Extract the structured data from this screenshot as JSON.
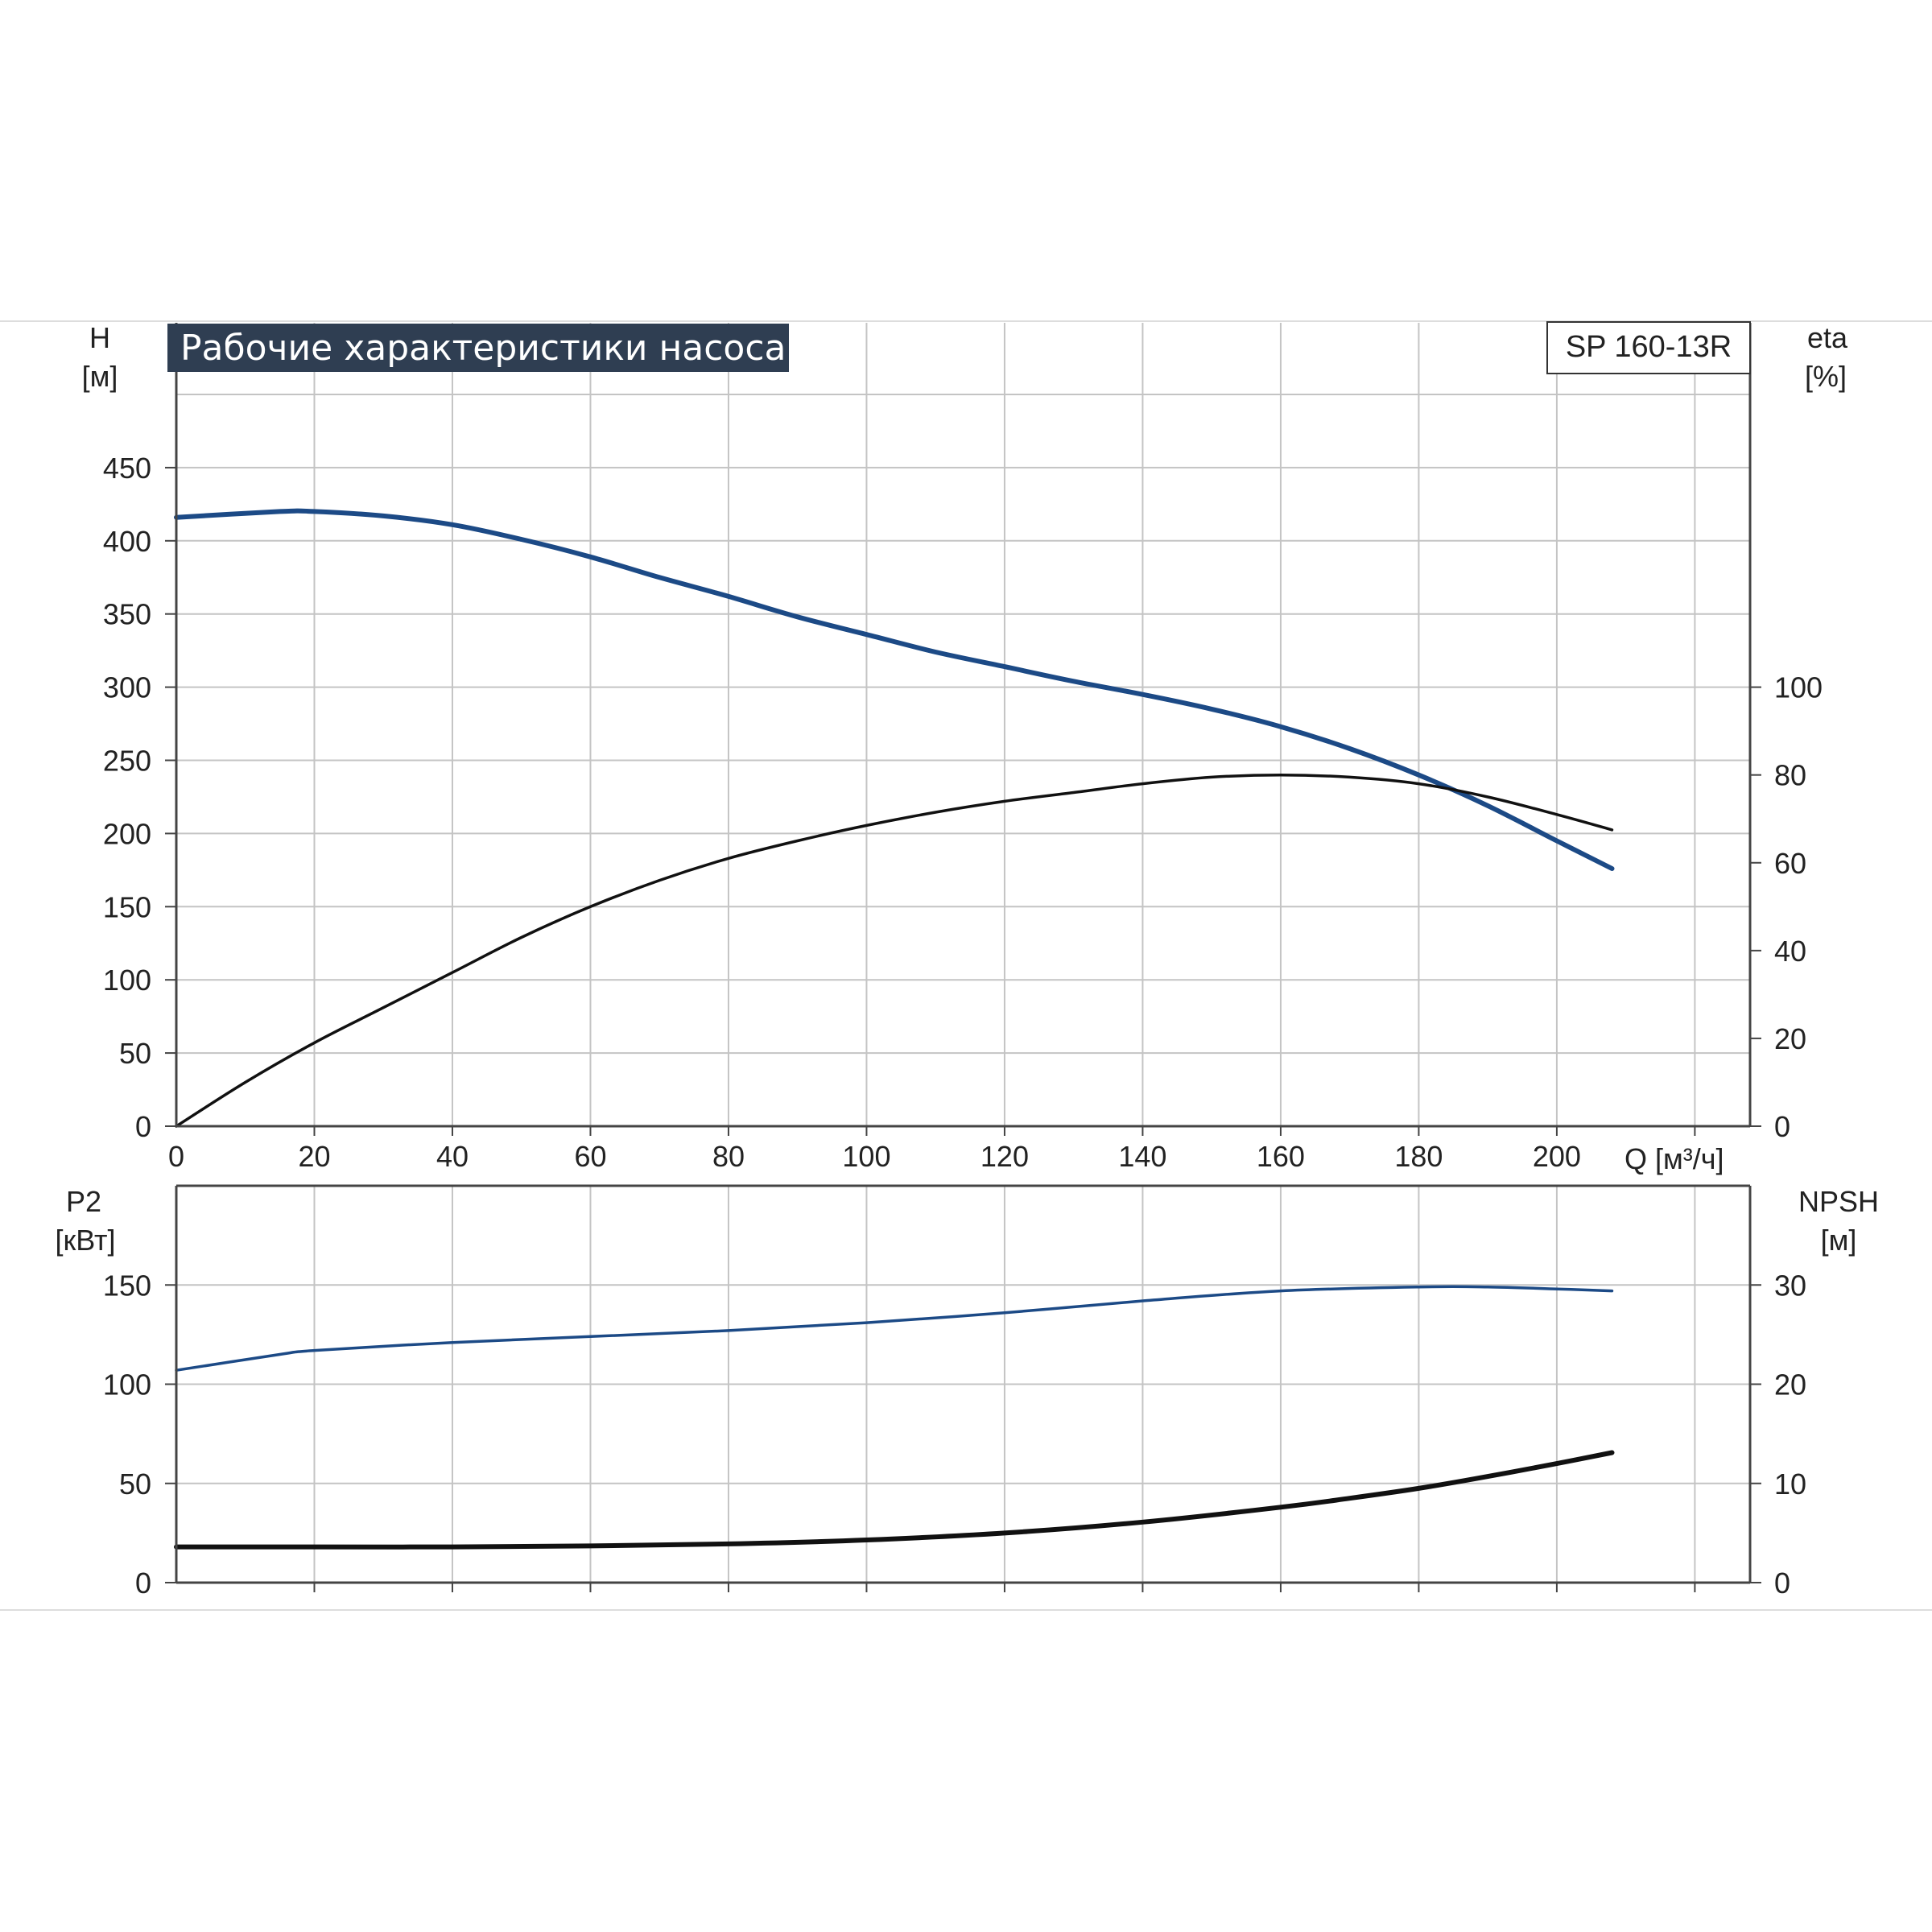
{
  "title": "Рабочие характеристики насоса",
  "model": "SP 160-13R",
  "colors": {
    "grid": "#c4c4c4",
    "axis": "#444444",
    "title_bg": "#2f3e52",
    "blue": "#1c4a86",
    "black": "#111111"
  },
  "chart_data": [
    {
      "type": "line",
      "name": "top",
      "x_axis": {
        "label": "Q [м³/ч]",
        "range": [
          0,
          228
        ],
        "ticks": [
          0,
          20,
          40,
          60,
          80,
          100,
          120,
          140,
          160,
          180,
          200
        ]
      },
      "left_axis": {
        "label_line1": "H",
        "label_line2": "[м]",
        "range": [
          0,
          500
        ],
        "ticks": [
          0,
          50,
          100,
          150,
          200,
          250,
          300,
          350,
          400,
          450
        ]
      },
      "right_axis": {
        "label_line1": "eta",
        "label_line2": "[%]",
        "range": [
          0,
          166.67
        ],
        "ticks": [
          0,
          20,
          40,
          60,
          80,
          100
        ]
      },
      "grid": true,
      "series": [
        {
          "axis": "left",
          "color": "blue",
          "x": [
            0,
            15,
            20,
            30,
            40,
            50,
            60,
            70,
            80,
            90,
            100,
            110,
            120,
            130,
            140,
            150,
            160,
            170,
            180,
            190,
            200,
            208
          ],
          "y": [
            416,
            420,
            420,
            417,
            411,
            401,
            389,
            375,
            362,
            348,
            336,
            324,
            314,
            304,
            295,
            285,
            273,
            258,
            240,
            219,
            195,
            176
          ]
        },
        {
          "axis": "right",
          "color": "black",
          "x": [
            0,
            10,
            20,
            30,
            40,
            50,
            60,
            70,
            80,
            90,
            100,
            110,
            120,
            130,
            140,
            150,
            160,
            170,
            180,
            190,
            200,
            208
          ],
          "y": [
            0,
            10,
            19,
            27,
            35,
            43,
            50,
            56,
            61,
            65,
            68.5,
            71.5,
            74,
            76,
            78,
            79.5,
            80,
            79.5,
            78,
            75,
            71,
            67.5
          ]
        }
      ]
    },
    {
      "type": "line",
      "name": "bottom",
      "x_axis": {
        "label": "",
        "range": [
          0,
          228
        ],
        "ticks": []
      },
      "left_axis": {
        "label_line1": "P2",
        "label_line2": "[кВт]",
        "range": [
          0,
          200
        ],
        "ticks": [
          0,
          50,
          100,
          150
        ]
      },
      "right_axis": {
        "label_line1": "NPSH",
        "label_line2": "[м]",
        "range": [
          0,
          40
        ],
        "ticks": [
          0,
          10,
          20,
          30
        ]
      },
      "grid": true,
      "series": [
        {
          "axis": "left",
          "color": "blue",
          "x": [
            0,
            15,
            20,
            40,
            60,
            80,
            100,
            120,
            140,
            160,
            180,
            190,
            200,
            208
          ],
          "y": [
            107,
            115,
            117,
            121,
            124,
            127,
            131,
            136,
            142,
            147,
            149,
            149,
            148,
            147
          ]
        },
        {
          "axis": "right",
          "color": "black",
          "x": [
            0,
            15,
            20,
            40,
            60,
            80,
            100,
            120,
            140,
            160,
            170,
            180,
            190,
            200,
            208
          ],
          "y": [
            3.6,
            3.6,
            3.6,
            3.6,
            3.7,
            3.9,
            4.3,
            5.0,
            6.1,
            7.6,
            8.5,
            9.5,
            10.7,
            12.0,
            13.1
          ]
        }
      ]
    }
  ]
}
